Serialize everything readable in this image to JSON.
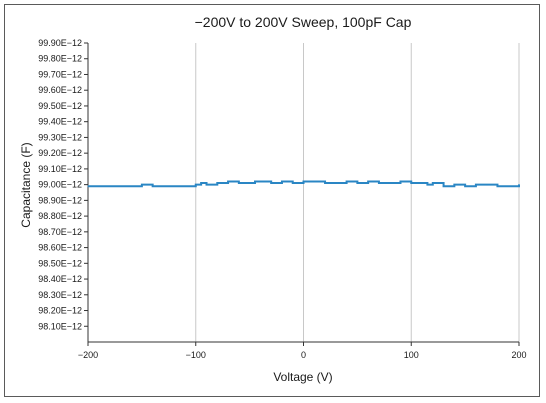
{
  "chart_data": {
    "type": "line",
    "title": "−200V to 200V Sweep, 100pF Cap",
    "xlabel": "Voltage (V)",
    "ylabel": "Capacitance (F)",
    "xlim": [
      -200,
      200
    ],
    "ylim": [
      98.0,
      99.9
    ],
    "x_ticks": [
      -200,
      -100,
      0,
      100,
      200
    ],
    "x_tick_labels": [
      "−200",
      "−100",
      "0",
      "100",
      "200"
    ],
    "y_ticks": [
      98.1,
      98.2,
      98.3,
      98.4,
      98.5,
      98.6,
      98.7,
      98.8,
      98.9,
      99.0,
      99.1,
      99.2,
      99.3,
      99.4,
      99.5,
      99.6,
      99.7,
      99.8,
      99.9
    ],
    "y_tick_labels": [
      "98.10E−12",
      "98.20E−12",
      "98.30E−12",
      "98.40E−12",
      "98.50E−12",
      "98.60E−12",
      "98.70E−12",
      "98.80E−12",
      "98.90E−12",
      "99.00E−12",
      "99.10E−12",
      "99.20E−12",
      "99.30E−12",
      "99.40E−12",
      "99.50E−12",
      "99.60E−12",
      "99.70E−12",
      "99.80E−12",
      "99.90E−12"
    ],
    "grid": "vertical",
    "series": [
      {
        "color": "#2a86c4",
        "x": [
          -200,
          -160,
          -150,
          -140,
          -100,
          -95,
          -90,
          -80,
          -70,
          -60,
          -50,
          -45,
          -40,
          -30,
          -20,
          -10,
          0,
          10,
          20,
          30,
          40,
          50,
          60,
          70,
          80,
          90,
          100,
          110,
          115,
          120,
          130,
          140,
          150,
          160,
          170,
          180,
          190,
          200
        ],
        "y": [
          98.99,
          98.99,
          99.0,
          98.99,
          99.0,
          99.01,
          99.0,
          99.01,
          99.02,
          99.01,
          99.01,
          99.02,
          99.02,
          99.01,
          99.02,
          99.01,
          99.02,
          99.02,
          99.01,
          99.01,
          99.02,
          99.01,
          99.02,
          99.01,
          99.01,
          99.02,
          99.01,
          99.01,
          99.0,
          99.01,
          98.99,
          99.0,
          98.99,
          99.0,
          99.0,
          98.99,
          98.99,
          99.0
        ]
      }
    ]
  }
}
